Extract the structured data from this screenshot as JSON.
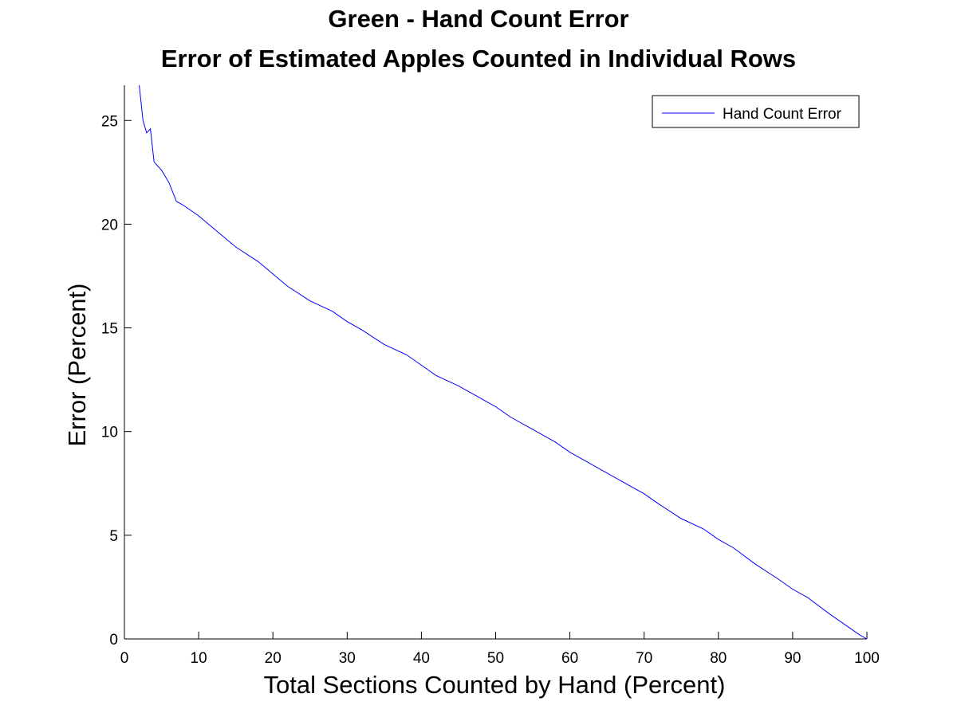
{
  "chart_data": {
    "type": "line",
    "title": "Green - Hand Count Error",
    "subtitle": "Error of Estimated Apples Counted in Individual Rows",
    "xlabel": "Total Sections Counted by Hand (Percent)",
    "ylabel": "Error (Percent)",
    "xlim": [
      0,
      100
    ],
    "ylim": [
      0,
      26.7
    ],
    "xticks": [
      0,
      10,
      20,
      30,
      40,
      50,
      60,
      70,
      80,
      90,
      100
    ],
    "yticks": [
      0,
      5,
      10,
      15,
      20,
      25
    ],
    "grid": false,
    "legend_position": "top-right",
    "series": [
      {
        "name": "Hand Count Error",
        "color": "#0000ff",
        "x": [
          2,
          2.5,
          3,
          3.5,
          4,
          5,
          6,
          7,
          8,
          10,
          12,
          15,
          18,
          20,
          22,
          25,
          28,
          30,
          32,
          35,
          38,
          40,
          42,
          45,
          48,
          50,
          52,
          55,
          58,
          60,
          62,
          65,
          68,
          70,
          72,
          75,
          78,
          80,
          82,
          85,
          88,
          90,
          92,
          95,
          97,
          99,
          100
        ],
        "values": [
          26.7,
          25.0,
          24.4,
          24.6,
          23.0,
          22.6,
          22.0,
          21.1,
          20.9,
          20.4,
          19.8,
          18.9,
          18.2,
          17.6,
          17.0,
          16.3,
          15.8,
          15.3,
          14.9,
          14.2,
          13.7,
          13.2,
          12.7,
          12.2,
          11.6,
          11.2,
          10.7,
          10.1,
          9.5,
          9.0,
          8.6,
          8.0,
          7.4,
          7.0,
          6.5,
          5.8,
          5.3,
          4.8,
          4.4,
          3.6,
          2.9,
          2.4,
          2.0,
          1.2,
          0.7,
          0.2,
          0.0
        ]
      }
    ]
  }
}
